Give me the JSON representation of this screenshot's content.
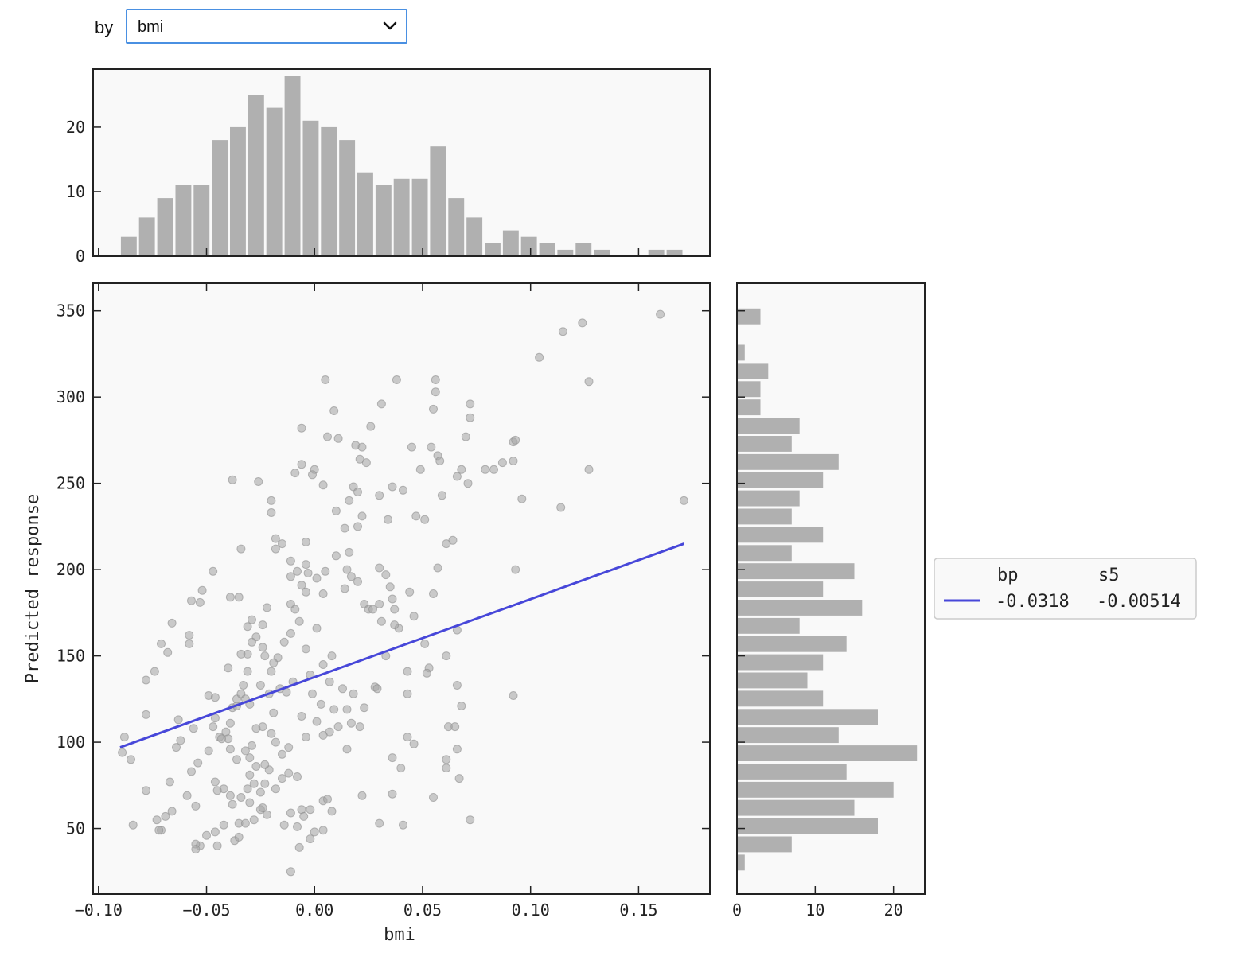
{
  "controls": {
    "by_label": "by",
    "selected": "bmi",
    "chevron_icon": "chevron-down-icon",
    "focus_color": "#4a90e2"
  },
  "chart_data": {
    "type": "scatter",
    "xlabel": "bmi",
    "ylabel": "Predicted response",
    "xlim": [
      -0.1025,
      0.183
    ],
    "ylim": [
      12,
      366
    ],
    "xticks": [
      -0.1,
      -0.05,
      0.0,
      0.05,
      0.1,
      0.15
    ],
    "xtick_labels": [
      "−0.10",
      "−0.05",
      "0.00",
      "0.05",
      "0.10",
      "0.15"
    ],
    "yticks": [
      50,
      100,
      150,
      200,
      250,
      300,
      350
    ],
    "point_color": "#a8a8a8",
    "line_color": "#4747d9",
    "bar_color": "#b0b0b0",
    "points": [
      [
        -0.088,
        103
      ],
      [
        -0.089,
        94
      ],
      [
        -0.085,
        90
      ],
      [
        -0.078,
        136
      ],
      [
        -0.074,
        141
      ],
      [
        -0.071,
        157
      ],
      [
        -0.066,
        169
      ],
      [
        -0.068,
        152
      ],
      [
        -0.058,
        162
      ],
      [
        -0.058,
        157
      ],
      [
        -0.057,
        182
      ],
      [
        -0.053,
        181
      ],
      [
        -0.052,
        188
      ],
      [
        -0.047,
        199
      ],
      [
        -0.049,
        127
      ],
      [
        -0.078,
        116
      ],
      [
        -0.063,
        113
      ],
      [
        -0.056,
        108
      ],
      [
        -0.046,
        114
      ],
      [
        -0.047,
        109
      ],
      [
        -0.041,
        106
      ],
      [
        -0.044,
        103
      ],
      [
        -0.04,
        102
      ],
      [
        -0.036,
        125
      ],
      [
        -0.034,
        128
      ],
      [
        -0.033,
        133
      ],
      [
        -0.032,
        125
      ],
      [
        -0.038,
        120
      ],
      [
        -0.039,
        111
      ],
      [
        -0.039,
        184
      ],
      [
        -0.035,
        184
      ],
      [
        -0.031,
        167
      ],
      [
        -0.029,
        171
      ],
      [
        -0.024,
        168
      ],
      [
        -0.022,
        178
      ],
      [
        -0.038,
        252
      ],
      [
        -0.034,
        212
      ],
      [
        -0.026,
        251
      ],
      [
        -0.02,
        240
      ],
      [
        -0.02,
        233
      ],
      [
        -0.018,
        218
      ],
      [
        -0.015,
        215
      ],
      [
        -0.018,
        212
      ],
      [
        -0.011,
        205
      ],
      [
        -0.011,
        196
      ],
      [
        -0.008,
        199
      ],
      [
        -0.014,
        158
      ],
      [
        -0.017,
        149
      ],
      [
        -0.019,
        146
      ],
      [
        -0.02,
        141
      ],
      [
        -0.023,
        150
      ],
      [
        -0.024,
        155
      ],
      [
        -0.027,
        161
      ],
      [
        -0.029,
        158
      ],
      [
        -0.031,
        151
      ],
      [
        -0.034,
        151
      ],
      [
        -0.031,
        141
      ],
      [
        -0.03,
        122
      ],
      [
        -0.021,
        128
      ],
      [
        -0.016,
        131
      ],
      [
        -0.013,
        129
      ],
      [
        -0.011,
        180
      ],
      [
        -0.009,
        177
      ],
      [
        -0.006,
        191
      ],
      [
        -0.004,
        203
      ],
      [
        -0.003,
        198
      ],
      [
        -0.004,
        216
      ],
      [
        -0.006,
        261
      ],
      [
        -0.009,
        256
      ],
      [
        -0.006,
        282
      ],
      [
        0.0,
        258
      ],
      [
        -0.001,
        255
      ],
      [
        0.005,
        310
      ],
      [
        0.009,
        292
      ],
      [
        0.006,
        277
      ],
      [
        0.011,
        276
      ],
      [
        0.004,
        249
      ],
      [
        0.01,
        234
      ],
      [
        0.014,
        224
      ],
      [
        0.016,
        240
      ],
      [
        0.018,
        248
      ],
      [
        0.02,
        245
      ],
      [
        0.024,
        262
      ],
      [
        0.019,
        272
      ],
      [
        0.022,
        271
      ],
      [
        0.021,
        264
      ],
      [
        0.026,
        283
      ],
      [
        0.031,
        296
      ],
      [
        0.038,
        310
      ],
      [
        0.041,
        246
      ],
      [
        0.036,
        248
      ],
      [
        0.03,
        243
      ],
      [
        0.034,
        229
      ],
      [
        0.022,
        231
      ],
      [
        0.02,
        225
      ],
      [
        0.016,
        210
      ],
      [
        0.01,
        208
      ],
      [
        0.005,
        199
      ],
      [
        0.001,
        195
      ],
      [
        -0.004,
        187
      ],
      [
        0.004,
        186
      ],
      [
        0.014,
        189
      ],
      [
        0.015,
        200
      ],
      [
        0.017,
        196
      ],
      [
        0.02,
        193
      ],
      [
        0.023,
        180
      ],
      [
        0.025,
        177
      ],
      [
        0.027,
        177
      ],
      [
        0.03,
        180
      ],
      [
        0.03,
        201
      ],
      [
        0.033,
        197
      ],
      [
        0.035,
        190
      ],
      [
        0.036,
        183
      ],
      [
        0.037,
        177
      ],
      [
        0.039,
        166
      ],
      [
        0.044,
        187
      ],
      [
        0.046,
        173
      ],
      [
        0.051,
        157
      ],
      [
        0.055,
        186
      ],
      [
        0.057,
        201
      ],
      [
        0.051,
        229
      ],
      [
        0.047,
        231
      ],
      [
        0.049,
        258
      ],
      [
        0.045,
        271
      ],
      [
        0.054,
        271
      ],
      [
        0.057,
        266
      ],
      [
        0.055,
        293
      ],
      [
        0.056,
        303
      ],
      [
        0.056,
        310
      ],
      [
        0.058,
        263
      ],
      [
        0.059,
        243
      ],
      [
        0.061,
        215
      ],
      [
        0.064,
        217
      ],
      [
        0.066,
        254
      ],
      [
        0.068,
        258
      ],
      [
        0.071,
        250
      ],
      [
        0.07,
        277
      ],
      [
        0.072,
        288
      ],
      [
        0.072,
        296
      ],
      [
        0.079,
        258
      ],
      [
        0.083,
        258
      ],
      [
        0.087,
        262
      ],
      [
        0.092,
        263
      ],
      [
        0.092,
        274
      ],
      [
        0.093,
        275
      ],
      [
        0.096,
        241
      ],
      [
        0.114,
        236
      ],
      [
        0.127,
        258
      ],
      [
        0.115,
        338
      ],
      [
        0.104,
        323
      ],
      [
        0.124,
        343
      ],
      [
        0.127,
        309
      ],
      [
        0.16,
        348
      ],
      [
        0.171,
        240
      ],
      [
        0.093,
        200
      ],
      [
        0.092,
        127
      ],
      [
        0.066,
        165
      ],
      [
        0.061,
        150
      ],
      [
        0.053,
        143
      ],
      [
        0.052,
        140
      ],
      [
        0.043,
        141
      ],
      [
        0.043,
        128
      ],
      [
        0.028,
        132
      ],
      [
        0.033,
        150
      ],
      [
        0.031,
        170
      ],
      [
        0.037,
        168
      ],
      [
        0.029,
        131
      ],
      [
        0.018,
        128
      ],
      [
        0.013,
        131
      ],
      [
        0.008,
        150
      ],
      [
        0.004,
        145
      ],
      [
        -0.002,
        139
      ],
      [
        -0.001,
        128
      ],
      [
        0.003,
        122
      ],
      [
        0.009,
        119
      ],
      [
        0.015,
        119
      ],
      [
        0.017,
        111
      ],
      [
        0.023,
        120
      ],
      [
        0.021,
        109
      ],
      [
        0.011,
        109
      ],
      [
        0.007,
        106
      ],
      [
        0.004,
        104
      ],
      [
        -0.004,
        103
      ],
      [
        -0.006,
        115
      ],
      [
        0.001,
        112
      ],
      [
        -0.01,
        135
      ],
      [
        -0.012,
        97
      ],
      [
        -0.015,
        93
      ],
      [
        -0.018,
        100
      ],
      [
        -0.02,
        105
      ],
      [
        -0.024,
        109
      ],
      [
        -0.027,
        108
      ],
      [
        -0.029,
        98
      ],
      [
        -0.032,
        95
      ],
      [
        -0.036,
        90
      ],
      [
        -0.039,
        96
      ],
      [
        -0.043,
        102
      ],
      [
        -0.049,
        95
      ],
      [
        -0.054,
        88
      ],
      [
        -0.057,
        83
      ],
      [
        -0.062,
        101
      ],
      [
        -0.064,
        97
      ],
      [
        -0.067,
        77
      ],
      [
        -0.078,
        72
      ],
      [
        -0.084,
        52
      ],
      [
        -0.073,
        55
      ],
      [
        -0.071,
        49
      ],
      [
        -0.066,
        60
      ],
      [
        -0.059,
        69
      ],
      [
        -0.055,
        63
      ],
      [
        -0.053,
        40
      ],
      [
        -0.05,
        46
      ],
      [
        -0.046,
        48
      ],
      [
        -0.042,
        52
      ],
      [
        -0.037,
        43
      ],
      [
        -0.035,
        45
      ],
      [
        -0.035,
        53
      ],
      [
        -0.032,
        53
      ],
      [
        -0.028,
        55
      ],
      [
        -0.025,
        61
      ],
      [
        -0.025,
        71
      ],
      [
        -0.023,
        76
      ],
      [
        -0.021,
        84
      ],
      [
        -0.023,
        87
      ],
      [
        -0.027,
        86
      ],
      [
        -0.03,
        91
      ],
      [
        -0.03,
        81
      ],
      [
        -0.028,
        76
      ],
      [
        -0.031,
        73
      ],
      [
        -0.034,
        68
      ],
      [
        -0.039,
        69
      ],
      [
        -0.042,
        73
      ],
      [
        -0.045,
        72
      ],
      [
        -0.046,
        77
      ],
      [
        -0.038,
        64
      ],
      [
        -0.03,
        65
      ],
      [
        -0.024,
        62
      ],
      [
        -0.022,
        58
      ],
      [
        -0.018,
        73
      ],
      [
        -0.015,
        79
      ],
      [
        -0.012,
        82
      ],
      [
        -0.008,
        80
      ],
      [
        -0.006,
        61
      ],
      [
        -0.011,
        59
      ],
      [
        -0.014,
        52
      ],
      [
        -0.008,
        51
      ],
      [
        -0.005,
        57
      ],
      [
        0.0,
        48
      ],
      [
        0.004,
        49
      ],
      [
        0.004,
        66
      ],
      [
        0.006,
        67
      ],
      [
        0.008,
        60
      ],
      [
        -0.002,
        61
      ],
      [
        -0.002,
        44
      ],
      [
        -0.007,
        39
      ],
      [
        -0.011,
        25
      ],
      [
        -0.045,
        40
      ],
      [
        -0.055,
        41
      ],
      [
        -0.055,
        38
      ],
      [
        -0.069,
        57
      ],
      [
        -0.072,
        49
      ],
      [
        0.015,
        96
      ],
      [
        0.022,
        69
      ],
      [
        0.03,
        53
      ],
      [
        0.036,
        91
      ],
      [
        0.04,
        85
      ],
      [
        0.036,
        70
      ],
      [
        0.041,
        52
      ],
      [
        0.043,
        103
      ],
      [
        0.046,
        99
      ],
      [
        0.055,
        68
      ],
      [
        0.061,
        90
      ],
      [
        0.061,
        85
      ],
      [
        0.066,
        96
      ],
      [
        0.067,
        79
      ],
      [
        0.068,
        121
      ],
      [
        0.062,
        109
      ],
      [
        0.065,
        109
      ],
      [
        0.072,
        55
      ],
      [
        0.066,
        133
      ],
      [
        -0.046,
        126
      ],
      [
        -0.04,
        143
      ],
      [
        -0.036,
        121
      ],
      [
        -0.025,
        133
      ],
      [
        -0.019,
        117
      ],
      [
        -0.011,
        163
      ],
      [
        -0.007,
        170
      ],
      [
        -0.004,
        154
      ],
      [
        0.001,
        166
      ],
      [
        0.007,
        135
      ]
    ],
    "regression_line": {
      "x": [
        -0.09,
        0.171
      ],
      "y": [
        97,
        215
      ]
    },
    "top_hist": {
      "bin_start": -0.0902,
      "bin_width": 0.00842,
      "counts": [
        3,
        6,
        9,
        11,
        11,
        18,
        20,
        25,
        23,
        28,
        21,
        20,
        18,
        13,
        11,
        12,
        12,
        17,
        9,
        6,
        2,
        4,
        3,
        2,
        1,
        2,
        1,
        0,
        0,
        1,
        1
      ],
      "yticks": [
        0,
        10,
        20
      ],
      "ylim": [
        0,
        29
      ]
    },
    "right_hist": {
      "bin_start": 25,
      "bin_width": 10.55,
      "counts": [
        1,
        7,
        18,
        15,
        20,
        14,
        23,
        13,
        18,
        11,
        9,
        11,
        14,
        8,
        16,
        11,
        15,
        7,
        11,
        7,
        8,
        11,
        13,
        7,
        8,
        3,
        3,
        4,
        1,
        0,
        3
      ],
      "xticks": [
        0,
        10,
        20
      ],
      "xlim": [
        0,
        24
      ]
    },
    "legend": {
      "headers": [
        "bp",
        "s5"
      ],
      "values": [
        "-0.0318",
        "-0.00514"
      ],
      "placement": "right"
    }
  }
}
